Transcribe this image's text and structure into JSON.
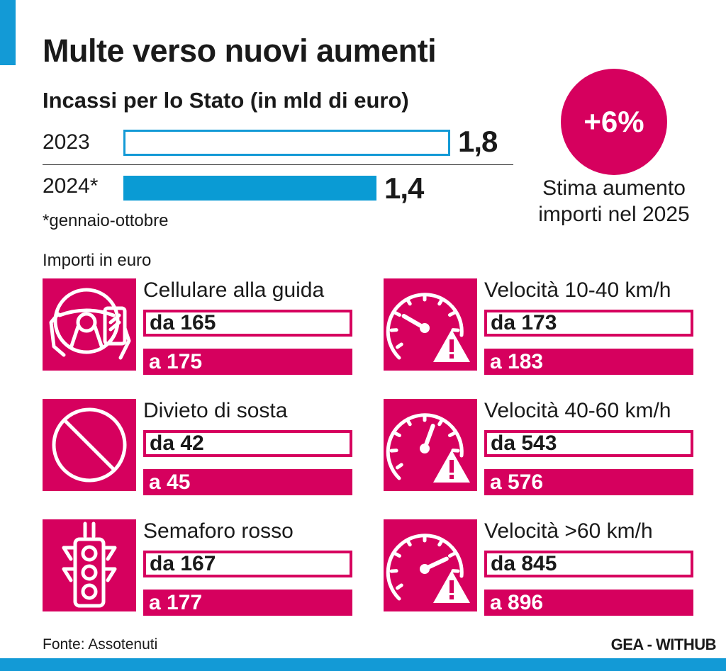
{
  "title": "Multe verso nuovi aumenti",
  "subtitle": "Incassi per lo Stato (in mld di euro)",
  "chart_data": {
    "type": "bar",
    "title": "Incassi per lo Stato (in mld di euro)",
    "categories": [
      "2023",
      "2024*"
    ],
    "values": [
      1.8,
      1.4
    ],
    "value_labels": [
      "1,8",
      "1,4"
    ],
    "orientation": "horizontal",
    "note": "*gennaio-ottobre",
    "colors": {
      "2023": "outline #139ad6",
      "2024*": "#0a9bd4"
    }
  },
  "badge": {
    "value": "+6%",
    "caption_line1": "Stima aumento",
    "caption_line2": "importi nel 2025"
  },
  "section_label": "Importi in euro",
  "fines": [
    {
      "icon": "steering-phone-icon",
      "label": "Cellulare alla guida",
      "from": "da 165",
      "to": "a 175"
    },
    {
      "icon": "speedometer-low-warning-icon",
      "label": "Velocità 10-40 km/h",
      "from": "da 173",
      "to": "a 183"
    },
    {
      "icon": "no-parking-icon",
      "label": "Divieto di sosta",
      "from": "da 42",
      "to": "a 45"
    },
    {
      "icon": "speedometer-mid-warning-icon",
      "label": "Velocità 40-60 km/h",
      "from": "da 543",
      "to": "a 576"
    },
    {
      "icon": "traffic-light-icon",
      "label": "Semaforo rosso",
      "from": "da 167",
      "to": "a 177"
    },
    {
      "icon": "speedometer-high-warning-icon",
      "label": "Velocità >60 km/h",
      "from": "da 845",
      "to": "a 896"
    }
  ],
  "source": "Fonte: Assotenuti",
  "credit": "GEA - WITHUB",
  "colors": {
    "accent_blue": "#139ad6",
    "magenta": "#d6005e"
  }
}
